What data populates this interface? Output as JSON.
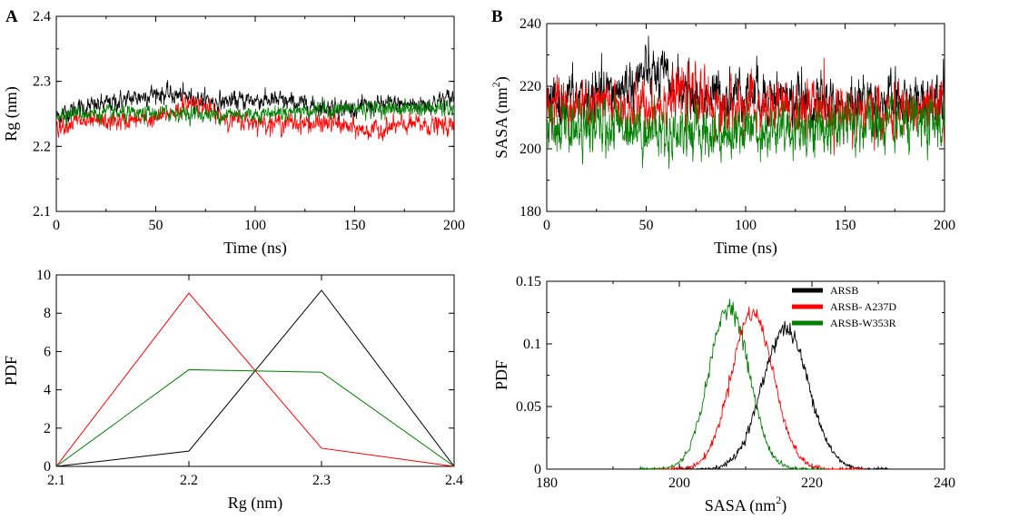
{
  "panels": {
    "A": "A",
    "B": "B"
  },
  "colors": {
    "ARSB": "#000000",
    "ARSB-A237D": "#ff0000",
    "ARSB-W353R": "#008000"
  },
  "chart_data": [
    {
      "id": "rg-time",
      "type": "line",
      "xlabel": "Time (ns)",
      "ylabel": "Rg (nm)",
      "xlim": [
        0,
        200
      ],
      "ylim": [
        2.1,
        2.4
      ],
      "xticks": [
        "0",
        "50",
        "100",
        "150",
        "200"
      ],
      "yticks": [
        "2.1",
        "2.2",
        "2.3",
        "2.4"
      ],
      "series": [
        {
          "key": "ARSB",
          "values_x": [
            0,
            10,
            20,
            30,
            40,
            50,
            60,
            70,
            80,
            90,
            100,
            110,
            120,
            130,
            140,
            150,
            160,
            170,
            180,
            190,
            200
          ],
          "values_y": [
            2.245,
            2.258,
            2.262,
            2.268,
            2.275,
            2.282,
            2.278,
            2.275,
            2.268,
            2.27,
            2.272,
            2.27,
            2.266,
            2.262,
            2.26,
            2.258,
            2.262,
            2.265,
            2.264,
            2.268,
            2.276
          ],
          "noise": 0.006
        },
        {
          "key": "ARSB-A237D",
          "values_x": [
            0,
            10,
            20,
            30,
            40,
            50,
            60,
            70,
            80,
            90,
            100,
            110,
            120,
            130,
            140,
            150,
            160,
            170,
            180,
            190,
            200
          ],
          "values_y": [
            2.232,
            2.238,
            2.236,
            2.238,
            2.24,
            2.242,
            2.256,
            2.27,
            2.248,
            2.24,
            2.238,
            2.236,
            2.236,
            2.234,
            2.236,
            2.226,
            2.224,
            2.23,
            2.234,
            2.232,
            2.23
          ],
          "noise": 0.006
        },
        {
          "key": "ARSB-W353R",
          "values_x": [
            0,
            10,
            20,
            30,
            40,
            50,
            60,
            70,
            80,
            90,
            100,
            110,
            120,
            130,
            140,
            150,
            160,
            170,
            180,
            190,
            200
          ],
          "values_y": [
            2.25,
            2.252,
            2.25,
            2.25,
            2.248,
            2.25,
            2.252,
            2.25,
            2.248,
            2.25,
            2.25,
            2.252,
            2.254,
            2.256,
            2.256,
            2.258,
            2.258,
            2.258,
            2.258,
            2.258,
            2.256
          ],
          "noise": 0.005
        }
      ]
    },
    {
      "id": "sasa-time",
      "type": "line",
      "xlabel": "Time (ns)",
      "ylabel_main": "SASA (nm",
      "ylabel_sup": "2",
      "ylabel_end": ")",
      "xlim": [
        0,
        200
      ],
      "ylim": [
        180,
        240
      ],
      "xticks": [
        "0",
        "50",
        "100",
        "150",
        "200"
      ],
      "yticks": [
        "180",
        "200",
        "220",
        "240"
      ],
      "series": [
        {
          "key": "ARSB",
          "values_x": [
            0,
            10,
            20,
            30,
            40,
            50,
            60,
            70,
            80,
            90,
            100,
            110,
            120,
            130,
            140,
            150,
            160,
            170,
            180,
            190,
            200
          ],
          "values_y": [
            212,
            216,
            216,
            217,
            220,
            224,
            222,
            218,
            216,
            217,
            219,
            218,
            216,
            214,
            215,
            213,
            216,
            215,
            214,
            216,
            220
          ],
          "noise": 3.5
        },
        {
          "key": "ARSB-A237D",
          "values_x": [
            0,
            10,
            20,
            30,
            40,
            50,
            60,
            70,
            80,
            90,
            100,
            110,
            120,
            130,
            140,
            150,
            160,
            170,
            180,
            190,
            200
          ],
          "values_y": [
            215,
            213,
            212,
            214,
            212,
            213,
            216,
            218,
            215,
            212,
            214,
            212,
            213,
            212,
            213,
            212,
            212,
            210,
            212,
            212,
            212
          ],
          "noise": 3.5
        },
        {
          "key": "ARSB-W353R",
          "values_x": [
            0,
            10,
            20,
            30,
            40,
            50,
            60,
            70,
            80,
            90,
            100,
            110,
            120,
            130,
            140,
            150,
            160,
            170,
            180,
            190,
            200
          ],
          "values_y": [
            208,
            207,
            206,
            207,
            208,
            206,
            205,
            206,
            205,
            205,
            207,
            206,
            205,
            207,
            206,
            207,
            208,
            207,
            207,
            207,
            208
          ],
          "noise": 3.5
        }
      ]
    },
    {
      "id": "rg-pdf",
      "type": "line",
      "xlabel": "Rg (nm)",
      "ylabel": "PDF",
      "xlim": [
        2.1,
        2.4
      ],
      "ylim": [
        0,
        10
      ],
      "xticks": [
        "2.1",
        "2.2",
        "2.3",
        "2.4"
      ],
      "yticks": [
        "0",
        "2",
        "4",
        "6",
        "8",
        "10"
      ],
      "series": [
        {
          "key": "ARSB",
          "x": [
            2.1,
            2.2,
            2.3,
            2.4
          ],
          "y": [
            0,
            0.8,
            9.2,
            0
          ]
        },
        {
          "key": "ARSB-A237D",
          "x": [
            2.1,
            2.2,
            2.3,
            2.4
          ],
          "y": [
            0,
            9.05,
            0.95,
            0
          ]
        },
        {
          "key": "ARSB-W353R",
          "x": [
            2.1,
            2.2,
            2.3,
            2.4
          ],
          "y": [
            0,
            5.05,
            4.92,
            0
          ]
        }
      ]
    },
    {
      "id": "sasa-pdf",
      "type": "line",
      "xlabel_main": "SASA (nm",
      "xlabel_sup": "2",
      "xlabel_end": ")",
      "ylabel": "PDF",
      "xlim": [
        180,
        240
      ],
      "ylim": [
        0,
        0.15
      ],
      "xticks": [
        "180",
        "200",
        "220",
        "240"
      ],
      "yticks": [
        "0",
        "0.05",
        "0.1",
        "0.15"
      ],
      "legend": {
        "placement": "top-right",
        "entries": [
          "ARSB",
          "ARSB- A237D",
          "ARSB-W353R"
        ]
      },
      "series": [
        {
          "key": "ARSB",
          "mean": 216,
          "sd": 3.5,
          "peak": 0.112,
          "range": [
            200,
            232
          ]
        },
        {
          "key": "ARSB-A237D",
          "mean": 211,
          "sd": 3.2,
          "peak": 0.125,
          "range": [
            196,
            228
          ]
        },
        {
          "key": "ARSB-W353R",
          "mean": 207.5,
          "sd": 3.0,
          "peak": 0.13,
          "range": [
            194,
            222
          ]
        }
      ]
    }
  ]
}
